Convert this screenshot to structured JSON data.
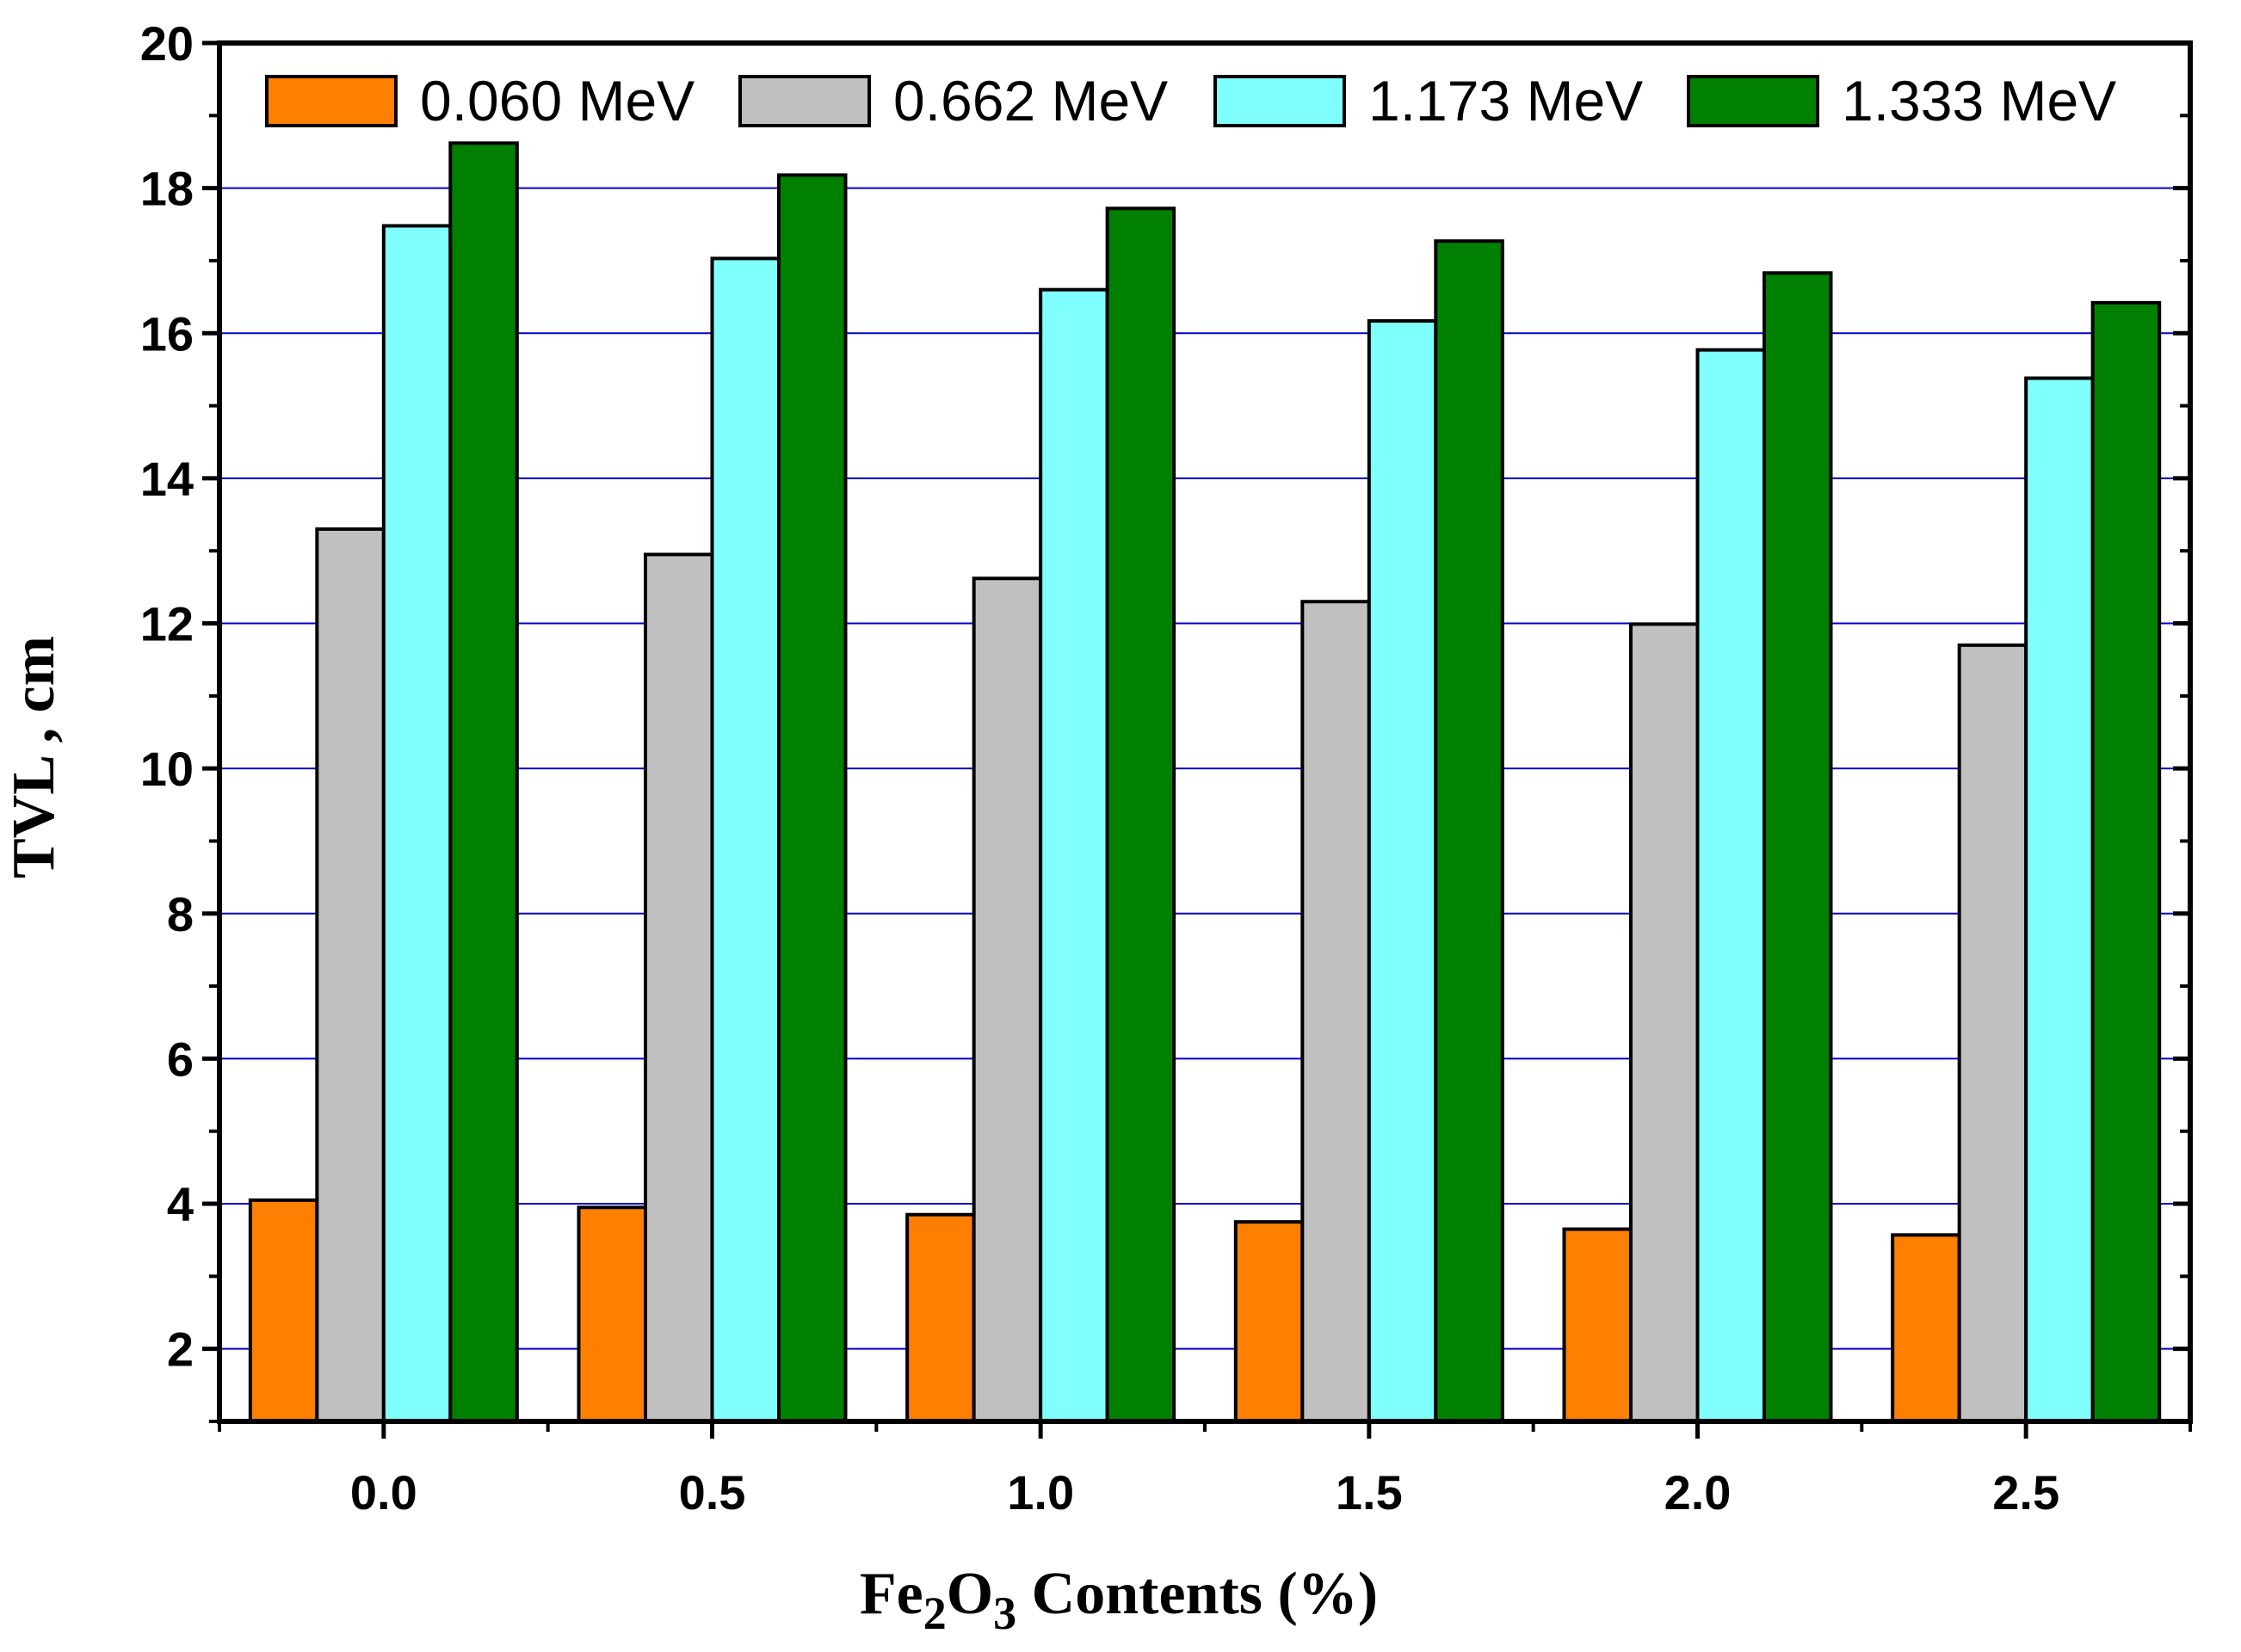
{
  "chart_data": {
    "type": "bar",
    "xlabel_parts": [
      "Fe",
      "2",
      "O",
      "3",
      " Contents (%)"
    ],
    "ylabel": "TVL , cm",
    "ylim": [
      1,
      20
    ],
    "yticks": [
      2,
      4,
      6,
      8,
      10,
      12,
      14,
      16,
      18,
      20
    ],
    "categories": [
      "0.0",
      "0.5",
      "1.0",
      "1.5",
      "2.0",
      "2.5"
    ],
    "grid": true,
    "legend_position": "top",
    "series": [
      {
        "name": "0.060 MeV",
        "color": "#ff7f00",
        "values": [
          4.05,
          3.95,
          3.85,
          3.75,
          3.65,
          3.57
        ]
      },
      {
        "name": "0.662 MeV",
        "color": "#c0c0c0",
        "values": [
          13.3,
          12.95,
          12.62,
          12.3,
          11.99,
          11.7
        ]
      },
      {
        "name": "1.173 MeV",
        "color": "#80ffff",
        "values": [
          17.48,
          17.03,
          16.6,
          16.17,
          15.77,
          15.38
        ]
      },
      {
        "name": "1.333 MeV",
        "color": "#008000",
        "values": [
          18.62,
          18.18,
          17.72,
          17.27,
          16.83,
          16.42
        ]
      }
    ],
    "colors": {
      "grid": "#0000cc",
      "axis": "#000000"
    }
  }
}
